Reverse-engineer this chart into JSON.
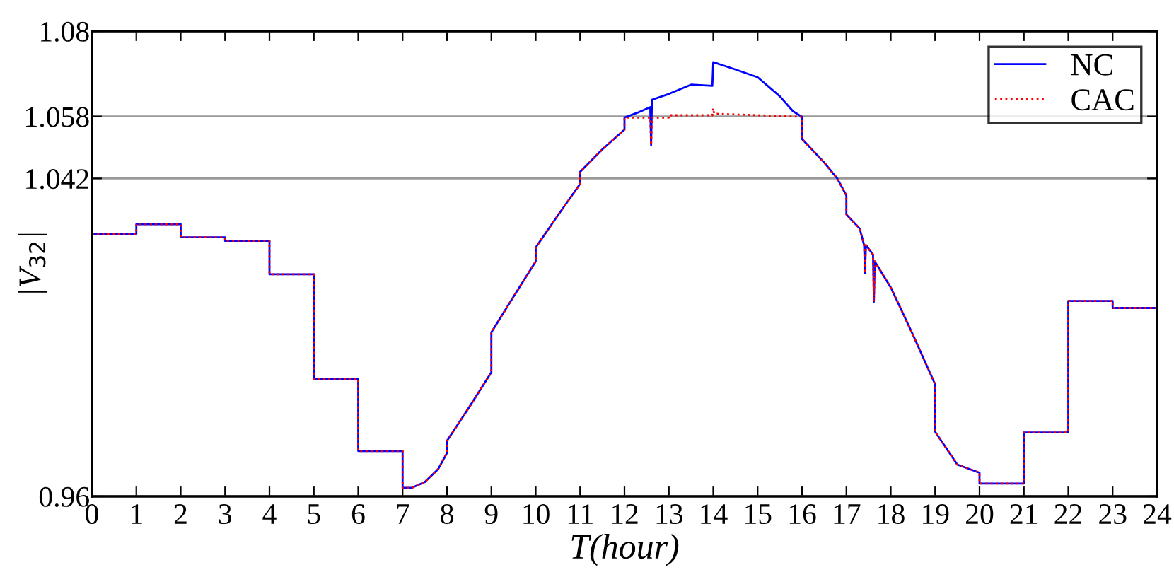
{
  "chart_data": {
    "type": "line",
    "xlabel": "T(hour)",
    "ylabel": "|V$_{32}$|",
    "xlim": [
      0,
      24
    ],
    "xticks": [
      0,
      1,
      2,
      3,
      4,
      5,
      6,
      7,
      8,
      9,
      10,
      11,
      12,
      13,
      14,
      15,
      16,
      17,
      18,
      19,
      20,
      21,
      22,
      23,
      24
    ],
    "ylim": [
      0.96,
      1.08
    ],
    "yticks": [
      0.96,
      1.042,
      1.058,
      1.08
    ],
    "grid": "y",
    "legend": "top right",
    "series": [
      {
        "name": "NC",
        "color": "#0000ff",
        "line_style": "solid",
        "x": [
          0,
          1,
          1,
          2,
          2,
          3,
          3,
          4,
          4,
          5,
          5,
          6,
          6,
          7,
          7,
          7.2,
          7.5,
          7.8,
          8,
          8,
          8.5,
          9,
          9,
          9.5,
          10,
          10,
          10.5,
          11,
          11,
          11.5,
          12,
          12,
          12.3,
          12.58,
          12.6,
          12.62,
          13,
          13.5,
          13.98,
          14,
          14.5,
          15,
          15.5,
          15.8,
          16,
          16,
          16.5,
          16.8,
          17,
          17,
          17.3,
          17.4,
          17.42,
          17.44,
          17.6,
          17.62,
          17.64,
          18,
          18.5,
          19,
          19,
          19.5,
          20,
          20,
          21,
          21,
          22,
          22,
          23,
          23,
          24
        ],
        "values": [
          1.0277,
          1.0277,
          1.0302,
          1.0302,
          1.0268,
          1.0268,
          1.0259,
          1.0259,
          1.0173,
          1.0173,
          0.9903,
          0.9903,
          0.9717,
          0.9717,
          0.9622,
          0.9622,
          0.9637,
          0.967,
          0.9712,
          0.9743,
          0.983,
          0.992,
          1.0023,
          1.0115,
          1.0206,
          1.0242,
          1.0325,
          1.0406,
          1.0437,
          1.0495,
          1.0546,
          1.0577,
          1.059,
          1.0604,
          1.0506,
          1.0623,
          1.0638,
          1.0662,
          1.0659,
          1.072,
          1.0701,
          1.0681,
          1.0632,
          1.0593,
          1.0579,
          1.0522,
          1.0461,
          1.0419,
          1.0376,
          1.0327,
          1.0291,
          1.0248,
          1.0175,
          1.0248,
          1.0224,
          1.0102,
          1.0206,
          1.0139,
          1.0017,
          0.9889,
          0.9767,
          0.9682,
          0.9661,
          0.9633,
          0.9633,
          0.9765,
          0.9765,
          1.0104,
          1.0104,
          1.0086,
          1.0086
        ]
      },
      {
        "name": "CAC",
        "color": "#ff0000",
        "line_style": "dotted",
        "x": [
          0,
          1,
          1,
          2,
          2,
          3,
          3,
          4,
          4,
          5,
          5,
          6,
          6,
          7,
          7,
          7.2,
          7.5,
          7.8,
          8,
          8,
          8.5,
          9,
          9,
          9.5,
          10,
          10,
          10.5,
          11,
          11,
          11.5,
          12,
          12,
          12.58,
          12.6,
          12.62,
          13,
          13,
          13.98,
          14,
          14.02,
          16,
          16,
          16.5,
          16.8,
          17,
          17,
          17.3,
          17.4,
          17.42,
          17.44,
          17.6,
          17.62,
          17.64,
          18,
          18.5,
          19,
          19,
          19.5,
          20,
          20,
          21,
          21,
          22,
          22,
          23,
          23,
          24
        ],
        "values": [
          1.0277,
          1.0277,
          1.0302,
          1.0302,
          1.0268,
          1.0268,
          1.0259,
          1.0259,
          1.0173,
          1.0173,
          0.9903,
          0.9903,
          0.9717,
          0.9717,
          0.9622,
          0.9622,
          0.9637,
          0.967,
          0.9712,
          0.9743,
          0.983,
          0.992,
          1.0023,
          1.0115,
          1.0206,
          1.0242,
          1.0325,
          1.0406,
          1.0437,
          1.0495,
          1.0546,
          1.0577,
          1.0577,
          1.0506,
          1.0577,
          1.0577,
          1.0583,
          1.0583,
          1.0601,
          1.0587,
          1.0579,
          1.0522,
          1.0461,
          1.0419,
          1.0376,
          1.0327,
          1.0291,
          1.0248,
          1.0175,
          1.0248,
          1.0224,
          1.0102,
          1.0206,
          1.0139,
          1.0017,
          0.9889,
          0.9767,
          0.9682,
          0.9661,
          0.9633,
          0.9633,
          0.9765,
          0.9765,
          1.0104,
          1.0104,
          1.0086,
          1.0086
        ]
      }
    ]
  }
}
